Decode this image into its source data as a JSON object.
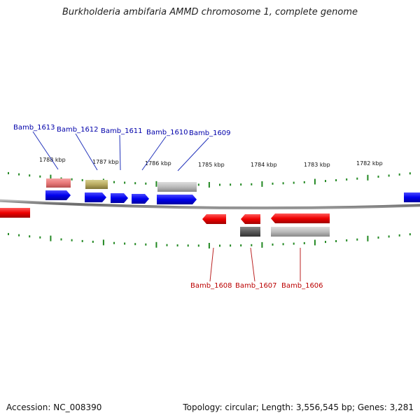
{
  "title": "Burkholderia ambifaria AMMD chromosome 1, complete genome",
  "footer": {
    "accession": "Accession: NC_008390",
    "info": "Topology: circular; Length: 3,556,545 bp; Genes: 3,281"
  },
  "colors": {
    "forward_gene": "#0000ee",
    "reverse_gene": "#ee0000",
    "forward_label": "#0000aa",
    "reverse_label": "#bb0000",
    "tick_marks": "#228822",
    "backbone": "#777777"
  },
  "ticks": [
    {
      "label": "1788 kbp"
    },
    {
      "label": "1787 kbp"
    },
    {
      "label": "1786 kbp"
    },
    {
      "label": "1785 kbp"
    },
    {
      "label": "1784 kbp"
    },
    {
      "label": "1783 kbp"
    },
    {
      "label": "1782 kbp"
    }
  ],
  "forward_genes": [
    {
      "name": "Bamb_1613"
    },
    {
      "name": "Bamb_1612"
    },
    {
      "name": "Bamb_1611"
    },
    {
      "name": "Bamb_1610"
    },
    {
      "name": "Bamb_1609"
    }
  ],
  "reverse_genes": [
    {
      "name": "Bamb_1608"
    },
    {
      "name": "Bamb_1607"
    },
    {
      "name": "Bamb_1606"
    }
  ]
}
